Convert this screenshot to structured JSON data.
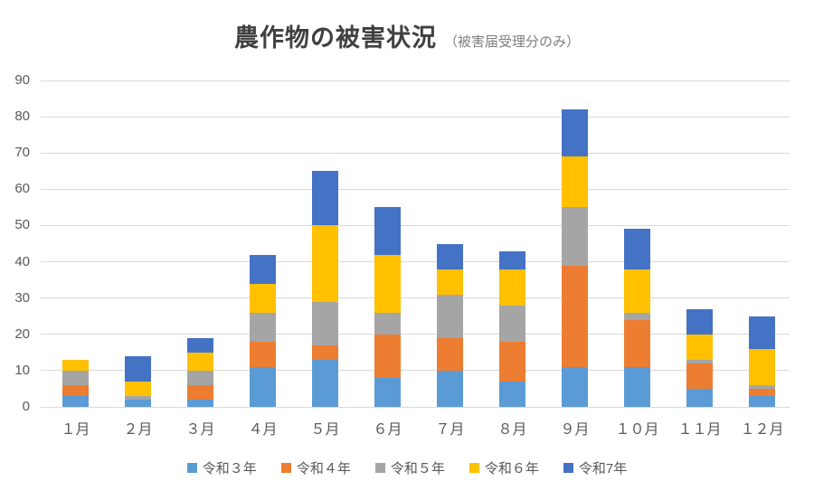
{
  "title": {
    "main": "農作物の被害状況",
    "subtitle": "（被害届受理分のみ）"
  },
  "chart_data": {
    "type": "bar",
    "stacked": true,
    "title": "農作物の被害状況（被害届受理分のみ）",
    "categories": [
      "１月",
      "２月",
      "３月",
      "４月",
      "５月",
      "６月",
      "７月",
      "８月",
      "９月",
      "１０月",
      "１１月",
      "１２月"
    ],
    "series": [
      {
        "name": "令和３年",
        "color": "#5B9BD5",
        "values": [
          3,
          2,
          2,
          11,
          13,
          8,
          10,
          7,
          11,
          11,
          5,
          3
        ]
      },
      {
        "name": "令和４年",
        "color": "#ED7D31",
        "values": [
          3,
          0,
          4,
          7,
          4,
          12,
          9,
          11,
          28,
          13,
          7,
          2
        ]
      },
      {
        "name": "令和５年",
        "color": "#A5A5A5",
        "values": [
          4,
          1,
          4,
          8,
          12,
          6,
          12,
          10,
          16,
          2,
          1,
          1
        ]
      },
      {
        "name": "令和６年",
        "color": "#FFC000",
        "values": [
          3,
          4,
          5,
          8,
          21,
          16,
          7,
          10,
          14,
          12,
          7,
          10
        ]
      },
      {
        "name": "令和7年",
        "color": "#4472C4",
        "values": [
          0,
          7,
          4,
          8,
          15,
          13,
          7,
          5,
          13,
          11,
          7,
          9
        ]
      }
    ],
    "totals": [
      13,
      14,
      19,
      42,
      65,
      55,
      45,
      43,
      82,
      49,
      27,
      25
    ],
    "xlabel": "",
    "ylabel": "",
    "ylim": [
      0,
      90
    ],
    "yticks": [
      0,
      10,
      20,
      30,
      40,
      50,
      60,
      70,
      80,
      90
    ],
    "grid": "horizontal",
    "legend_position": "bottom"
  },
  "palette": {
    "background": "#FFFFFF",
    "gridline": "#D9D9D9",
    "tick_text": "#595959",
    "title_text": "#404040",
    "subtitle_text": "#7F7F7F"
  }
}
